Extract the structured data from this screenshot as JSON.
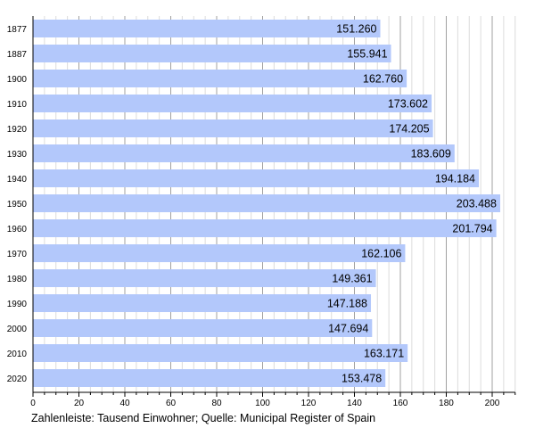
{
  "chart_data": {
    "type": "bar",
    "orientation": "horizontal",
    "categories": [
      "1877",
      "1887",
      "1900",
      "1910",
      "1920",
      "1930",
      "1940",
      "1950",
      "1960",
      "1970",
      "1980",
      "1990",
      "2000",
      "2010",
      "2020"
    ],
    "values": [
      151.26,
      155.941,
      162.76,
      173.602,
      174.205,
      183.609,
      194.184,
      203.488,
      201.794,
      162.106,
      149.361,
      147.188,
      147.694,
      163.171,
      153.478
    ],
    "value_labels": [
      "151.260",
      "155.941",
      "162.760",
      "173.602",
      "174.205",
      "183.609",
      "194.184",
      "203.488",
      "201.794",
      "162.106",
      "149.361",
      "147.188",
      "147.694",
      "163.171",
      "153.478"
    ],
    "xlim": [
      0,
      210
    ],
    "xticks": [
      "0",
      "20",
      "40",
      "60",
      "80",
      "100",
      "120",
      "140",
      "160",
      "180",
      "200"
    ],
    "caption": "Zahlenleiste: Tausend Einwohner; Quelle: Municipal Register of Spain",
    "grid": true,
    "bar_color": "#b3c8fb"
  }
}
